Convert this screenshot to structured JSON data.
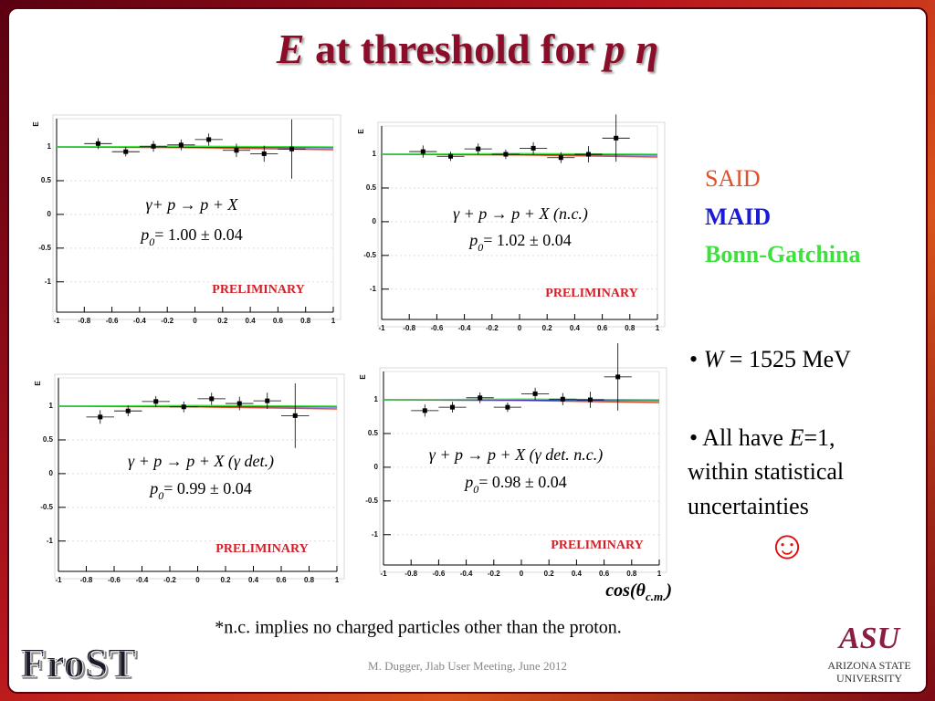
{
  "title": {
    "italic_1": "E",
    "text": " at threshold for ",
    "italic_2": "p η"
  },
  "legend": [
    {
      "name": "SAID",
      "color": "#e0502a"
    },
    {
      "name": "MAID",
      "color": "#1a1adb"
    },
    {
      "name": "Bonn-Gatchina",
      "color": "#3ee03e"
    }
  ],
  "notes": {
    "bullet_1": {
      "prefix": "• ",
      "symbol": "W",
      "text": " = 1525 MeV"
    },
    "bullet_2": {
      "prefix": "• All have ",
      "symbol": "E",
      "text": "=1,",
      "line_2": "within statistical",
      "line_3": "uncertainties",
      "icon": "☺"
    }
  },
  "x_axis_label": {
    "main": "cos(θ",
    "subscript": "c.m.",
    "close": ")"
  },
  "footnote": "*n.c. implies no charged particles other than the proton.",
  "footer": "M. Dugger, Jlab User Meeting, June 2012",
  "logos": {
    "frost": "FroST",
    "asu": "ASU",
    "asu_name_1": "Arizona State",
    "asu_name_2": "University"
  },
  "chart_data": [
    {
      "type": "scatter",
      "y_label": "E",
      "reaction": "γ+ p → p + X",
      "fit_symbol": "p",
      "fit_subscript": "0",
      "fit_label": "= 1.00 ± 0.04",
      "watermark": "PRELIMINARY",
      "x": [
        -0.7,
        -0.5,
        -0.3,
        -0.1,
        0.1,
        0.3,
        0.5,
        0.7
      ],
      "values": [
        1.05,
        0.93,
        1.01,
        1.03,
        1.11,
        0.95,
        0.9,
        0.97
      ],
      "errors": [
        0.08,
        0.07,
        0.08,
        0.08,
        0.09,
        0.1,
        0.12,
        0.44
      ],
      "x_error": 0.1,
      "curve_x": [
        -1,
        0,
        1
      ],
      "curves": [
        [
          1.0,
          0.99,
          0.96
        ],
        [
          1.0,
          1.0,
          0.99
        ],
        [
          1.0,
          1.01,
          1.0
        ]
      ],
      "xlim": [
        -1,
        1
      ],
      "ylim": [
        -1.45,
        1.42
      ],
      "xticks": [
        -1,
        -0.8,
        -0.6,
        -0.4,
        -0.2,
        0,
        0.2,
        0.4,
        0.6,
        0.8,
        1
      ],
      "yticks": [
        -1,
        -0.5,
        0,
        0.5,
        1
      ]
    },
    {
      "type": "scatter",
      "y_label": "E",
      "reaction": "γ + p → p + X (n.c.)",
      "fit_symbol": "p",
      "fit_subscript": "0",
      "fit_label": "= 1.02 ± 0.04",
      "watermark": "PRELIMINARY",
      "x": [
        -0.7,
        -0.5,
        -0.3,
        -0.1,
        0.1,
        0.3,
        0.5,
        0.7
      ],
      "values": [
        1.04,
        0.97,
        1.08,
        1.0,
        1.09,
        0.95,
        1.0,
        1.24
      ],
      "errors": [
        0.09,
        0.07,
        0.08,
        0.07,
        0.09,
        0.08,
        0.12,
        0.35
      ],
      "x_error": 0.1,
      "curve_x": [
        -1,
        0,
        1
      ],
      "curves": [
        [
          1.0,
          0.99,
          0.96
        ],
        [
          1.0,
          1.0,
          0.99
        ],
        [
          1.0,
          1.01,
          1.0
        ]
      ],
      "xlim": [
        -1,
        1
      ],
      "ylim": [
        -1.45,
        1.42
      ],
      "xticks": [
        -1,
        -0.8,
        -0.6,
        -0.4,
        -0.2,
        0,
        0.2,
        0.4,
        0.6,
        0.8,
        1
      ],
      "yticks": [
        -1,
        -0.5,
        0,
        0.5,
        1
      ]
    },
    {
      "type": "scatter",
      "y_label": "E",
      "reaction": "γ + p → p + X (γ det.)",
      "fit_symbol": "p",
      "fit_subscript": "0",
      "fit_label": "= 0.99 ± 0.04",
      "watermark": "PRELIMINARY",
      "x": [
        -0.7,
        -0.5,
        -0.3,
        -0.1,
        0.1,
        0.3,
        0.5,
        0.7
      ],
      "values": [
        0.84,
        0.93,
        1.07,
        0.99,
        1.11,
        1.04,
        1.08,
        0.86
      ],
      "errors": [
        0.1,
        0.08,
        0.08,
        0.08,
        0.09,
        0.1,
        0.12,
        0.48
      ],
      "x_error": 0.1,
      "curve_x": [
        -1,
        0,
        1
      ],
      "curves": [
        [
          1.0,
          0.99,
          0.96
        ],
        [
          1.0,
          1.0,
          0.99
        ],
        [
          1.0,
          1.01,
          1.0
        ]
      ],
      "xlim": [
        -1,
        1
      ],
      "ylim": [
        -1.45,
        1.42
      ],
      "xticks": [
        -1,
        -0.8,
        -0.6,
        -0.4,
        -0.2,
        0,
        0.2,
        0.4,
        0.6,
        0.8,
        1
      ],
      "yticks": [
        -1,
        -0.5,
        0,
        0.5,
        1
      ]
    },
    {
      "type": "scatter",
      "y_label": "E",
      "reaction": "γ + p → p + X (γ det. n.c.)",
      "fit_symbol": "p",
      "fit_subscript": "0",
      "fit_label": "= 0.98 ± 0.04",
      "watermark": "PRELIMINARY",
      "x": [
        -0.7,
        -0.5,
        -0.3,
        -0.1,
        0.1,
        0.3,
        0.5,
        0.7
      ],
      "values": [
        0.84,
        0.89,
        1.03,
        0.89,
        1.09,
        1.01,
        1.0,
        1.34
      ],
      "errors": [
        0.09,
        0.08,
        0.08,
        0.07,
        0.09,
        0.09,
        0.12,
        0.5
      ],
      "x_error": 0.1,
      "curve_x": [
        -1,
        0,
        1
      ],
      "curves": [
        [
          1.0,
          0.99,
          0.96
        ],
        [
          1.0,
          1.0,
          0.99
        ],
        [
          1.0,
          1.01,
          1.0
        ]
      ],
      "xlim": [
        -1,
        1
      ],
      "ylim": [
        -1.45,
        1.42
      ],
      "xticks": [
        -1,
        -0.8,
        -0.6,
        -0.4,
        -0.2,
        0,
        0.2,
        0.4,
        0.6,
        0.8,
        1
      ],
      "yticks": [
        -1,
        -0.5,
        0,
        0.5,
        1
      ]
    }
  ]
}
